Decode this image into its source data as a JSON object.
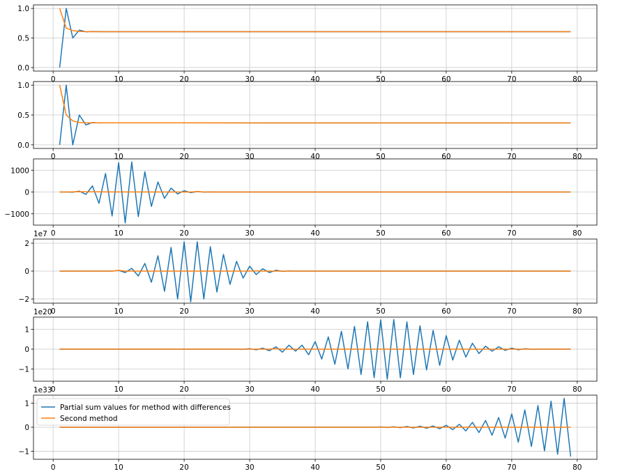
{
  "chart_data": [
    {
      "type": "line",
      "xlim": [
        -3,
        83
      ],
      "ylim": [
        -0.06,
        1.06
      ],
      "grid": true,
      "offset_label": "",
      "xticks": [
        "0",
        "10",
        "20",
        "30",
        "40",
        "50",
        "60",
        "70",
        "80"
      ],
      "yticks": [
        {
          "v": 0,
          "label": "0.0"
        },
        {
          "v": 0.5,
          "label": "0.5"
        },
        {
          "v": 1,
          "label": "1.0"
        }
      ],
      "series": [
        {
          "color": "#1f77b4",
          "points": [
            [
              1,
              0
            ],
            [
              2,
              1
            ],
            [
              3,
              0.5
            ],
            [
              4,
              0.6333
            ],
            [
              5,
              0.6042
            ],
            [
              6,
              0.6083
            ],
            [
              7,
              0.6069
            ],
            [
              8,
              0.6066
            ],
            [
              79,
              0.6065
            ]
          ]
        },
        {
          "color": "#ff7f0e",
          "points": [
            [
              1,
              1
            ],
            [
              2,
              0.6667
            ],
            [
              3,
              0.625
            ],
            [
              4,
              0.61
            ],
            [
              5,
              0.607
            ],
            [
              6,
              0.6066
            ],
            [
              79,
              0.6065
            ]
          ]
        }
      ]
    },
    {
      "type": "line",
      "xlim": [
        -3,
        83
      ],
      "ylim": [
        -0.06,
        1.06
      ],
      "grid": true,
      "offset_label": "",
      "xticks": [
        "0",
        "10",
        "20",
        "30",
        "40",
        "50",
        "60",
        "70",
        "80"
      ],
      "yticks": [
        {
          "v": 0,
          "label": "0.0"
        },
        {
          "v": 0.5,
          "label": "0.5"
        },
        {
          "v": 1,
          "label": "1.0"
        }
      ],
      "series": [
        {
          "color": "#1f77b4",
          "points": [
            [
              1,
              0
            ],
            [
              2,
              1
            ],
            [
              3,
              0
            ],
            [
              4,
              0.5
            ],
            [
              5,
              0.3333
            ],
            [
              6,
              0.375
            ],
            [
              7,
              0.3667
            ],
            [
              8,
              0.3681
            ],
            [
              79,
              0.3679
            ]
          ]
        },
        {
          "color": "#ff7f0e",
          "points": [
            [
              1,
              1
            ],
            [
              2,
              0.5
            ],
            [
              3,
              0.4
            ],
            [
              4,
              0.375
            ],
            [
              5,
              0.37
            ],
            [
              6,
              0.368
            ],
            [
              79,
              0.3679
            ]
          ]
        }
      ]
    },
    {
      "type": "line",
      "xlim": [
        -3,
        83
      ],
      "ylim": [
        -1520,
        1520
      ],
      "grid": true,
      "offset_label": "",
      "xticks": [
        "0",
        "10",
        "20",
        "30",
        "40",
        "50",
        "60",
        "70",
        "80"
      ],
      "yticks": [
        {
          "v": -1000,
          "label": "−1000"
        },
        {
          "v": 0,
          "label": "0"
        },
        {
          "v": 1000,
          "label": "1000"
        }
      ],
      "series": [
        {
          "color": "#1f77b4",
          "points": [
            [
              1,
              0
            ],
            [
              2,
              1
            ],
            [
              3,
              -10
            ],
            [
              4,
              40
            ],
            [
              5,
              -110
            ],
            [
              6,
              280
            ],
            [
              7,
              -520
            ],
            [
              8,
              850
            ],
            [
              9,
              -1100
            ],
            [
              10,
              1350
            ],
            [
              11,
              -1420
            ],
            [
              12,
              1380
            ],
            [
              13,
              -1130
            ],
            [
              14,
              930
            ],
            [
              15,
              -660
            ],
            [
              16,
              460
            ],
            [
              17,
              -290
            ],
            [
              18,
              180
            ],
            [
              19,
              -90
            ],
            [
              20,
              60
            ],
            [
              21,
              -30
            ],
            [
              22,
              20
            ],
            [
              23,
              -5
            ],
            [
              24,
              3
            ],
            [
              25,
              0
            ],
            [
              79,
              0
            ]
          ]
        },
        {
          "color": "#ff7f0e",
          "points": [
            [
              1,
              0
            ],
            [
              2,
              0
            ],
            [
              3,
              10
            ],
            [
              4,
              15
            ],
            [
              5,
              10
            ],
            [
              6,
              10
            ],
            [
              7,
              10
            ],
            [
              8,
              5
            ],
            [
              21,
              0
            ],
            [
              22,
              20
            ],
            [
              23,
              5
            ],
            [
              24,
              0
            ],
            [
              79,
              0
            ]
          ]
        }
      ]
    },
    {
      "type": "line",
      "xlim": [
        -3,
        83
      ],
      "ylim": [
        -2.3,
        2.3
      ],
      "grid": true,
      "offset_label": "1e7",
      "xticks": [
        "0",
        "10",
        "20",
        "30",
        "40",
        "50",
        "60",
        "70",
        "80"
      ],
      "yticks": [
        {
          "v": -2,
          "label": "−2"
        },
        {
          "v": 0,
          "label": "0"
        },
        {
          "v": 2,
          "label": "2"
        }
      ],
      "series": [
        {
          "color": "#1f77b4",
          "points": [
            [
              1,
              0
            ],
            [
              9,
              0
            ],
            [
              10,
              0.05
            ],
            [
              11,
              -0.1
            ],
            [
              12,
              0.2
            ],
            [
              13,
              -0.35
            ],
            [
              14,
              0.55
            ],
            [
              15,
              -0.8
            ],
            [
              16,
              1.1
            ],
            [
              17,
              -1.45
            ],
            [
              18,
              1.7
            ],
            [
              19,
              -2.0
            ],
            [
              20,
              2.1
            ],
            [
              21,
              -2.2
            ],
            [
              22,
              2.1
            ],
            [
              23,
              -2.0
            ],
            [
              24,
              1.75
            ],
            [
              25,
              -1.5
            ],
            [
              26,
              1.2
            ],
            [
              27,
              -0.95
            ],
            [
              28,
              0.7
            ],
            [
              29,
              -0.5
            ],
            [
              30,
              0.35
            ],
            [
              31,
              -0.25
            ],
            [
              32,
              0.17
            ],
            [
              33,
              -0.1
            ],
            [
              34,
              0.06
            ],
            [
              35,
              -0.02
            ],
            [
              36,
              0.01
            ],
            [
              37,
              0
            ],
            [
              79,
              0
            ]
          ]
        },
        {
          "color": "#ff7f0e",
          "points": [
            [
              1,
              0
            ],
            [
              9,
              0
            ],
            [
              10,
              0.05
            ],
            [
              11,
              0
            ],
            [
              30,
              0
            ],
            [
              31,
              0.02
            ],
            [
              32,
              0
            ],
            [
              79,
              0
            ]
          ]
        }
      ]
    },
    {
      "type": "line",
      "xlim": [
        -3,
        83
      ],
      "ylim": [
        -1.62,
        1.62
      ],
      "grid": true,
      "offset_label": "1e20",
      "xticks": [
        "0",
        "10",
        "20",
        "30",
        "40",
        "50",
        "60",
        "70",
        "80"
      ],
      "yticks": [
        {
          "v": -1,
          "label": "−1"
        },
        {
          "v": 0,
          "label": "0"
        },
        {
          "v": 1,
          "label": "1"
        }
      ],
      "series": [
        {
          "color": "#1f77b4",
          "points": [
            [
              1,
              0
            ],
            [
              28,
              0
            ],
            [
              29,
              -0.01
            ],
            [
              30,
              0.02
            ],
            [
              31,
              -0.03
            ],
            [
              32,
              0.05
            ],
            [
              33,
              -0.08
            ],
            [
              34,
              0.12
            ],
            [
              35,
              -0.15
            ],
            [
              36,
              0.2
            ],
            [
              37,
              -0.1
            ],
            [
              38,
              0.2
            ],
            [
              39,
              -0.28
            ],
            [
              40,
              0.38
            ],
            [
              41,
              -0.5
            ],
            [
              42,
              0.62
            ],
            [
              43,
              -0.76
            ],
            [
              44,
              0.9
            ],
            [
              45,
              -1.0
            ],
            [
              46,
              1.15
            ],
            [
              47,
              -1.28
            ],
            [
              48,
              1.38
            ],
            [
              49,
              -1.44
            ],
            [
              50,
              1.48
            ],
            [
              51,
              -1.52
            ],
            [
              52,
              1.5
            ],
            [
              53,
              -1.45
            ],
            [
              54,
              1.38
            ],
            [
              55,
              -1.28
            ],
            [
              56,
              1.18
            ],
            [
              57,
              -1.05
            ],
            [
              58,
              0.95
            ],
            [
              59,
              -0.82
            ],
            [
              60,
              0.68
            ],
            [
              61,
              -0.55
            ],
            [
              62,
              0.45
            ],
            [
              63,
              -0.4
            ],
            [
              64,
              0.3
            ],
            [
              65,
              -0.22
            ],
            [
              66,
              0.15
            ],
            [
              67,
              -0.1
            ],
            [
              68,
              0.12
            ],
            [
              69,
              -0.06
            ],
            [
              70,
              0.05
            ],
            [
              71,
              -0.03
            ],
            [
              72,
              0.02
            ],
            [
              73,
              -0.01
            ],
            [
              74,
              0
            ],
            [
              79,
              0
            ]
          ]
        },
        {
          "color": "#ff7f0e",
          "points": [
            [
              1,
              0
            ],
            [
              33,
              0
            ],
            [
              34,
              0.02
            ],
            [
              35,
              0
            ],
            [
              79,
              0
            ]
          ]
        }
      ]
    },
    {
      "type": "line",
      "xlim": [
        -3,
        83
      ],
      "ylim": [
        -1.33,
        1.33
      ],
      "grid": true,
      "offset_label": "1e33",
      "xticks": [
        "0",
        "10",
        "20",
        "30",
        "40",
        "50",
        "60",
        "70",
        "80"
      ],
      "yticks": [
        {
          "v": -1,
          "label": "−1"
        },
        {
          "v": 0,
          "label": "0"
        },
        {
          "v": 1,
          "label": "1"
        }
      ],
      "legend": "upper left",
      "series": [
        {
          "name": "Partial sum values for method with differences",
          "color": "#1f77b4",
          "points": [
            [
              1,
              0
            ],
            [
              49,
              0
            ],
            [
              50,
              0.01
            ],
            [
              51,
              -0.01
            ],
            [
              52,
              0.02
            ],
            [
              53,
              -0.02
            ],
            [
              54,
              0.03
            ],
            [
              55,
              -0.03
            ],
            [
              56,
              0.04
            ],
            [
              57,
              -0.04
            ],
            [
              58,
              0.05
            ],
            [
              59,
              -0.06
            ],
            [
              60,
              0.08
            ],
            [
              61,
              -0.1
            ],
            [
              62,
              0.12
            ],
            [
              63,
              -0.15
            ],
            [
              64,
              0.2
            ],
            [
              65,
              -0.22
            ],
            [
              66,
              0.28
            ],
            [
              67,
              -0.33
            ],
            [
              68,
              0.4
            ],
            [
              69,
              -0.45
            ],
            [
              70,
              0.55
            ],
            [
              71,
              -0.62
            ],
            [
              72,
              0.72
            ],
            [
              73,
              -0.8
            ],
            [
              74,
              0.9
            ],
            [
              75,
              -0.98
            ],
            [
              76,
              1.08
            ],
            [
              77,
              -1.12
            ],
            [
              78,
              1.2
            ],
            [
              79,
              -1.22
            ]
          ]
        },
        {
          "name": "Second method",
          "color": "#ff7f0e",
          "points": [
            [
              1,
              0
            ],
            [
              79,
              0
            ]
          ]
        }
      ]
    }
  ]
}
